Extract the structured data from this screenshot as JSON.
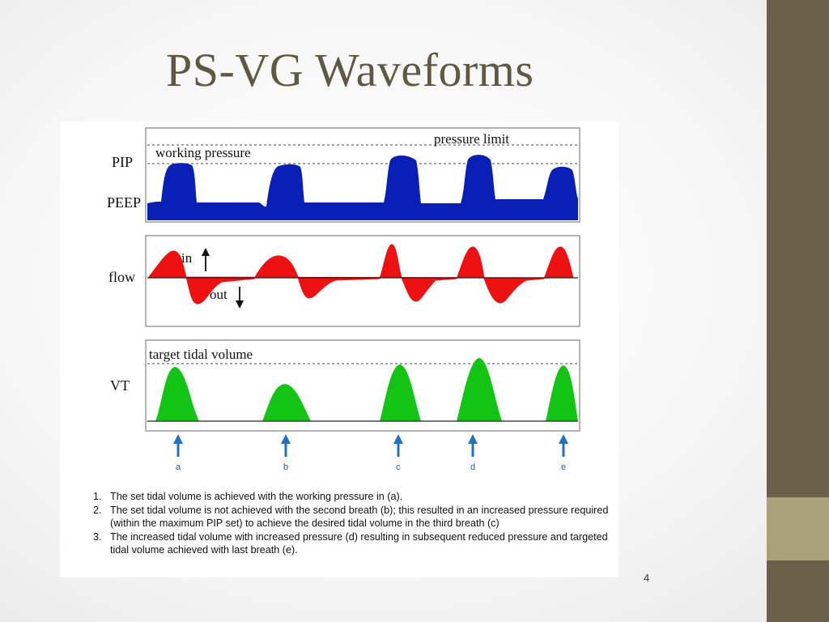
{
  "slide": {
    "title": "PS-VG Waveforms",
    "page_number": "4",
    "colors": {
      "sidebar": "#6b604a",
      "sidebar_accent": "#a7a27a",
      "title": "#5f5944"
    }
  },
  "figure": {
    "pressure_panel": {
      "y_labels": [
        "PIP",
        "PEEP"
      ],
      "annotations": [
        "working pressure",
        "pressure limit"
      ],
      "color": "#0a1fb5"
    },
    "flow_panel": {
      "y_label": "flow",
      "annotations": [
        "in",
        "out"
      ],
      "color": "#ee1111"
    },
    "volume_panel": {
      "y_label": "VT",
      "annotations": [
        "target tidal volume"
      ],
      "color": "#14c414"
    },
    "breath_markers": [
      "a",
      "b",
      "c",
      "d",
      "e"
    ],
    "arrow_color": "#1f73c4",
    "notes": [
      {
        "num": "1.",
        "text": "The set tidal volume is achieved with the working pressure in (a)."
      },
      {
        "num": "2.",
        "text": "The set tidal volume is not achieved with the second breath (b); this resulted in an increased pressure required (within the maximum PIP set) to achieve the desired tidal volume in the third breath (c)"
      },
      {
        "num": "3.",
        "text": "The increased tidal volume with increased pressure (d) resulting in subsequent reduced pressure and targeted tidal volume achieved with last breath (e)."
      }
    ]
  }
}
